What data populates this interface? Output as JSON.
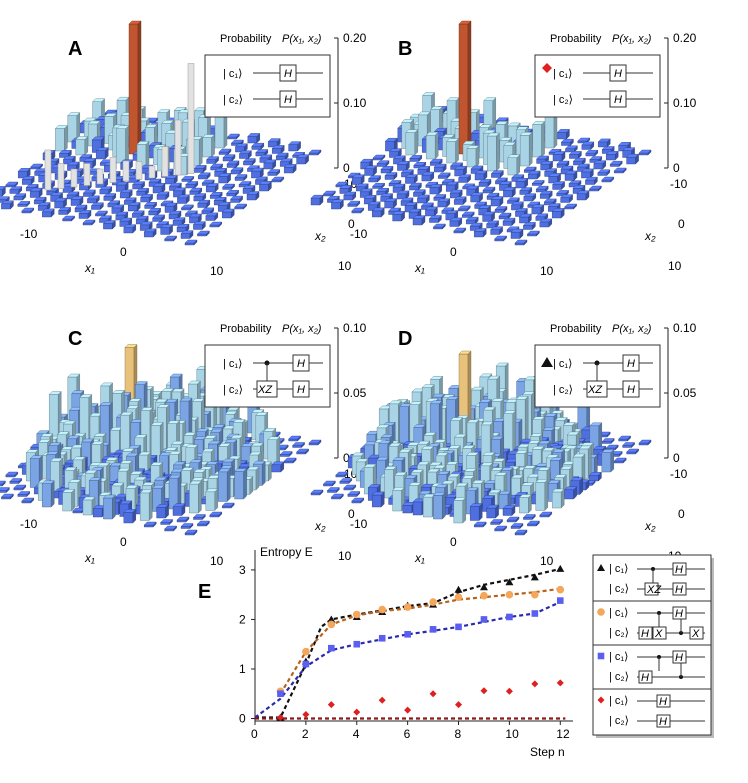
{
  "figure": {
    "panels": [
      {
        "id": "A",
        "label": "A",
        "zlabel": "Probability",
        "zsym": "P(x₁, x₂)",
        "zticks": [
          "0.20",
          "0.10",
          "0"
        ],
        "x1label": "x₁",
        "x2label": "x₂",
        "x1ticks": [
          "-10",
          "0",
          "10"
        ],
        "x2ticks": [
          "-10",
          "0",
          "10"
        ],
        "circuit": "hh",
        "marker": "",
        "shadow": true
      },
      {
        "id": "B",
        "label": "B",
        "zlabel": "Probability",
        "zsym": "P(x₁, x₂)",
        "zticks": [
          "0.20",
          "0.10",
          "0"
        ],
        "x1label": "x₁",
        "x2label": "x₂",
        "x1ticks": [
          "-10",
          "0",
          "10"
        ],
        "x2ticks": [
          "-10",
          "0",
          "10"
        ],
        "circuit": "hh",
        "marker": "diamond",
        "shadow": false
      },
      {
        "id": "C",
        "label": "C",
        "zlabel": "Probability",
        "zsym": "P(x₁, x₂)",
        "zticks": [
          "0.10",
          "0.05",
          "0"
        ],
        "x1label": "x₁",
        "x2label": "x₂",
        "x1ticks": [
          "-10",
          "0",
          "10"
        ],
        "x2ticks": [
          "-10",
          "0",
          "10"
        ],
        "circuit": "xz",
        "marker": "",
        "shadow": false
      },
      {
        "id": "D",
        "label": "D",
        "zlabel": "Probability",
        "zsym": "P(x₁, x₂)",
        "zticks": [
          "0.10",
          "0.05",
          "0"
        ],
        "x1label": "x₁",
        "x2label": "x₂",
        "x1ticks": [
          "-10",
          "0",
          "10"
        ],
        "x2ticks": [
          "-10",
          "0",
          "10"
        ],
        "circuit": "xz",
        "marker": "triangle",
        "shadow": false
      }
    ],
    "gates": {
      "H": "H",
      "XZ": "XZ",
      "X": "X",
      "c1": "| c₁⟩",
      "c2": "| c₂⟩"
    }
  },
  "chart_data": {
    "type": "scatter",
    "label": "E",
    "title": "",
    "ylabel": "Entropy E",
    "xlabel": "Step n",
    "xlim": [
      0,
      12.5
    ],
    "ylim": [
      -0.05,
      3.2
    ],
    "xticks": [
      0,
      2,
      4,
      6,
      8,
      10,
      12
    ],
    "yticks": [
      0,
      1,
      2,
      3
    ],
    "series": [
      {
        "name": "triangle",
        "marker": "triangle",
        "color": "#111111",
        "x": [
          1,
          2,
          3,
          4,
          5,
          6,
          7,
          8,
          9,
          10,
          11,
          12
        ],
        "y": [
          0.02,
          1.15,
          2.0,
          2.05,
          2.15,
          2.28,
          2.3,
          2.6,
          2.65,
          2.75,
          2.85,
          3.02
        ],
        "fit_color": "#111111",
        "fit": [
          [
            0,
            0.02
          ],
          [
            1,
            0.02
          ],
          [
            2,
            1.1
          ],
          [
            2.6,
            1.85
          ],
          [
            3,
            2.0
          ],
          [
            4,
            2.1
          ],
          [
            5,
            2.18
          ],
          [
            6,
            2.27
          ],
          [
            7,
            2.33
          ],
          [
            8,
            2.55
          ],
          [
            9,
            2.7
          ],
          [
            10,
            2.8
          ],
          [
            11,
            2.9
          ],
          [
            12,
            3.02
          ]
        ]
      },
      {
        "name": "circle",
        "marker": "circle",
        "color": "#f4a65a",
        "x": [
          1,
          2,
          3,
          4,
          5,
          6,
          7,
          8,
          9,
          10,
          11,
          12
        ],
        "y": [
          0.55,
          1.35,
          1.9,
          2.1,
          2.2,
          2.25,
          2.35,
          2.45,
          2.48,
          2.5,
          2.5,
          2.6
        ],
        "fit_color": "#b8621a",
        "fit": [
          [
            1,
            0.5
          ],
          [
            2,
            1.35
          ],
          [
            3,
            1.9
          ],
          [
            4,
            2.08
          ],
          [
            5,
            2.17
          ],
          [
            6,
            2.22
          ],
          [
            7,
            2.3
          ],
          [
            8,
            2.4
          ],
          [
            9,
            2.45
          ],
          [
            10,
            2.5
          ],
          [
            11,
            2.55
          ],
          [
            12,
            2.62
          ]
        ]
      },
      {
        "name": "square",
        "marker": "square",
        "color": "#5a5ff0",
        "x": [
          1,
          2,
          3,
          4,
          5,
          6,
          7,
          8,
          9,
          10,
          11,
          12
        ],
        "y": [
          0.5,
          1.1,
          1.42,
          1.5,
          1.62,
          1.7,
          1.8,
          1.85,
          2.0,
          2.05,
          2.12,
          2.38
        ],
        "fit_color": "#2a2ab0",
        "fit": [
          [
            0,
            0.02
          ],
          [
            1,
            0.4
          ],
          [
            2,
            1.05
          ],
          [
            3,
            1.38
          ],
          [
            4,
            1.5
          ],
          [
            5,
            1.6
          ],
          [
            6,
            1.7
          ],
          [
            7,
            1.77
          ],
          [
            8,
            1.85
          ],
          [
            9,
            1.95
          ],
          [
            10,
            2.05
          ],
          [
            11,
            2.12
          ],
          [
            12,
            2.35
          ]
        ]
      },
      {
        "name": "diamond",
        "marker": "diamond",
        "color": "#e02020",
        "x": [
          1,
          2,
          3,
          4,
          5,
          6,
          7,
          8,
          9,
          10,
          11,
          12
        ],
        "y": [
          0.02,
          0.08,
          0.28,
          0.13,
          0.37,
          0.17,
          0.5,
          0.28,
          0.56,
          0.55,
          0.7,
          0.72
        ],
        "fit_color": "#8b1a1a",
        "fit": [
          [
            0,
            0.0
          ],
          [
            12.2,
            0.0
          ]
        ]
      }
    ]
  }
}
